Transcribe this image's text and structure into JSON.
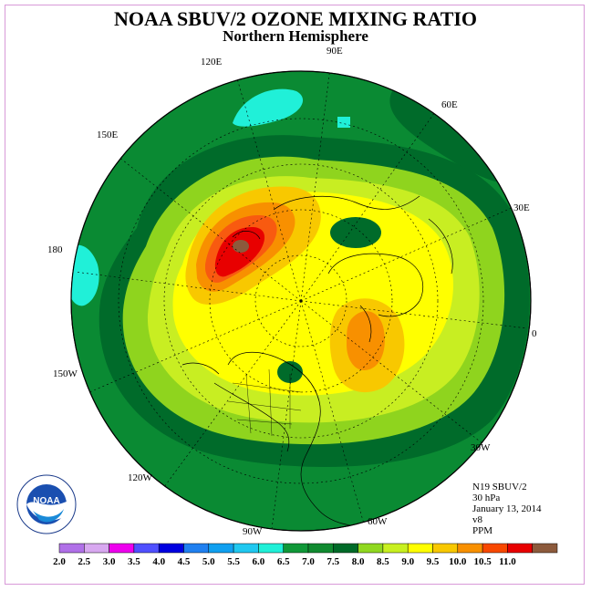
{
  "title": "NOAA SBUV/2 OZONE MIXING RATIO",
  "subtitle": "Northern Hemisphere",
  "longitude_labels": {
    "e90": "90E",
    "e120": "120E",
    "e60": "60E",
    "e150": "150E",
    "e30": "30E",
    "d180": "180",
    "d0": "0",
    "w150": "150W",
    "w30": "30W",
    "w120": "120W",
    "w60": "60W",
    "w90": "90W"
  },
  "info": {
    "instrument": "N19 SBUV/2",
    "level": "30 hPa",
    "date": "January 13, 2014",
    "version": "v8",
    "units": "PPM"
  },
  "logo_text": "NOAA",
  "colorbar": {
    "ticks": [
      "2.0",
      "2.5",
      "3.0",
      "3.5",
      "4.0",
      "4.5",
      "5.0",
      "5.5",
      "6.0",
      "6.5",
      "7.0",
      "7.5",
      "8.0",
      "8.5",
      "9.0",
      "9.5",
      "10.0",
      "10.5",
      "11.0"
    ],
    "colors": [
      "#b070e8",
      "#d8a8f0",
      "#ee00ee",
      "#5050ff",
      "#0000e0",
      "#2080f0",
      "#10a0f0",
      "#20c8f0",
      "#20f0d8",
      "#109838",
      "#108a30",
      "#006a28",
      "#90d820",
      "#c8f020",
      "#ffff00",
      "#f8c800",
      "#f89000",
      "#f84800",
      "#e80000",
      "#8c5a3c"
    ]
  },
  "colors": {
    "outer_green": "#0a8a33",
    "dark_green": "#006b2a",
    "light_green": "#8fd41e",
    "yellow_green": "#c8ee22",
    "yellow": "#ffff00",
    "gold": "#f8c800",
    "orange": "#f89000",
    "dark_orange": "#f85a10",
    "red": "#e80000",
    "brown": "#8c5a3c",
    "cyan": "#20f0d8"
  }
}
